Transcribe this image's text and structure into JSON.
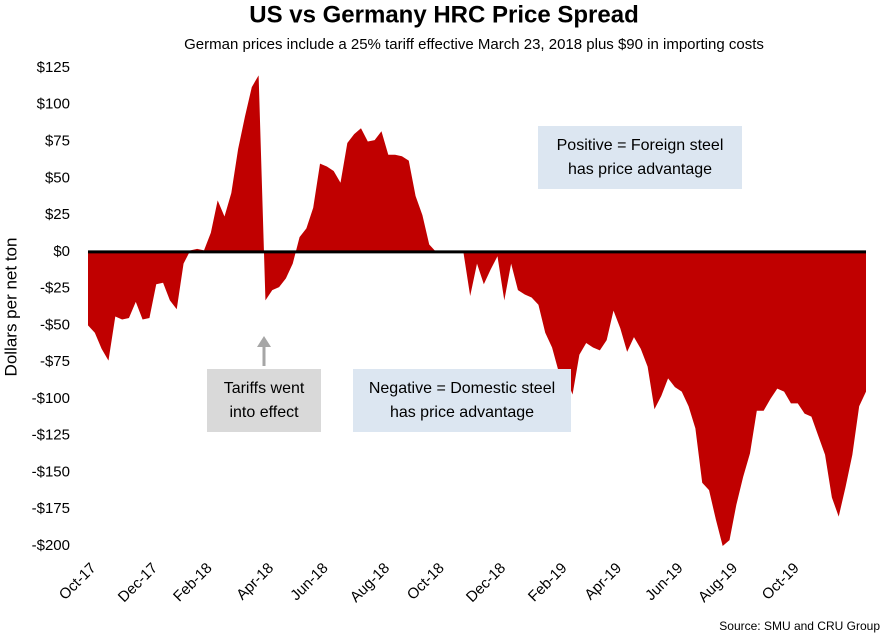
{
  "chart_data": {
    "type": "area",
    "title": "US vs Germany HRC Price Spread",
    "subtitle": "German prices include a 25% tariff effective March 23, 2018 plus $90 in importing costs",
    "y_label": "Dollars per net ton",
    "source": "Source: SMU and CRU Group",
    "color": "#c00000",
    "categories": [
      "Oct-17",
      null,
      null,
      null,
      null,
      null,
      null,
      null,
      null,
      "Dec-17",
      null,
      null,
      null,
      null,
      null,
      null,
      null,
      "Feb-18",
      null,
      null,
      null,
      null,
      null,
      null,
      null,
      null,
      "Apr-18",
      null,
      null,
      null,
      null,
      null,
      null,
      null,
      "Jun-18",
      null,
      null,
      null,
      null,
      null,
      null,
      null,
      null,
      "Aug-18",
      null,
      null,
      null,
      null,
      null,
      null,
      null,
      "Oct-18",
      null,
      null,
      null,
      null,
      null,
      null,
      null,
      null,
      "Dec-18",
      null,
      null,
      null,
      null,
      null,
      null,
      null,
      null,
      "Feb-19",
      null,
      null,
      null,
      null,
      null,
      null,
      null,
      "Apr-19",
      null,
      null,
      null,
      null,
      null,
      null,
      null,
      null,
      "Jun-19",
      null,
      null,
      null,
      null,
      null,
      null,
      null,
      "Aug-19",
      null,
      null,
      null,
      null,
      null,
      null,
      null,
      null,
      "Oct-19",
      null,
      null,
      null,
      null,
      null,
      null,
      null,
      null,
      null,
      null,
      null
    ],
    "values": [
      -50,
      -55,
      -66,
      -74,
      -44,
      -46,
      -45,
      -34,
      -46,
      -45,
      -22,
      -21,
      -33,
      -39,
      -8,
      1,
      2,
      1,
      13,
      35,
      24,
      40,
      70,
      92,
      112,
      120,
      -33,
      -26,
      -24,
      -18,
      -8,
      10,
      16,
      30,
      60,
      58,
      55,
      47,
      74,
      80,
      84,
      75,
      76,
      82,
      66,
      66,
      65,
      62,
      38,
      25,
      5,
      0,
      0,
      0,
      0,
      0,
      -30,
      -8,
      -22,
      -12,
      -3,
      -33,
      -8,
      -26,
      -29,
      -31,
      -36,
      -55,
      -65,
      -82,
      -85,
      -97,
      -70,
      -62,
      -65,
      -67,
      -60,
      -40,
      -52,
      -68,
      -58,
      -66,
      -78,
      -107,
      -98,
      -86,
      -92,
      -95,
      -105,
      -120,
      -157,
      -162,
      -182,
      -200,
      -196,
      -172,
      -153,
      -137,
      -108,
      -108,
      -100,
      -93,
      -95,
      -103,
      -103,
      -110,
      -112,
      -125,
      -138,
      -167,
      -180,
      -160,
      -138,
      -105,
      -95
    ],
    "ylim": [
      -200,
      125
    ],
    "yticks": [
      {
        "value": -200,
        "label": "-$200"
      },
      {
        "value": -175,
        "label": "-$175"
      },
      {
        "value": -150,
        "label": "-$150"
      },
      {
        "value": -125,
        "label": "-$125"
      },
      {
        "value": -100,
        "label": "-$100"
      },
      {
        "value": -75,
        "label": "-$75"
      },
      {
        "value": -50,
        "label": "-$50"
      },
      {
        "value": -25,
        "label": "-$25"
      },
      {
        "value": 0,
        "label": "$0"
      },
      {
        "value": 25,
        "label": "$25"
      },
      {
        "value": 50,
        "label": "$50"
      },
      {
        "value": 75,
        "label": "$75"
      },
      {
        "value": 100,
        "label": "$100"
      },
      {
        "value": 125,
        "label": "$125"
      }
    ],
    "annotations": [
      {
        "lines": [
          "Positive = Foreign steel",
          "has price advantage"
        ]
      },
      {
        "lines": [
          "Tariffs went",
          "into effect"
        ]
      },
      {
        "lines": [
          "Negative = Domestic steel",
          "has price advantage"
        ]
      }
    ]
  }
}
